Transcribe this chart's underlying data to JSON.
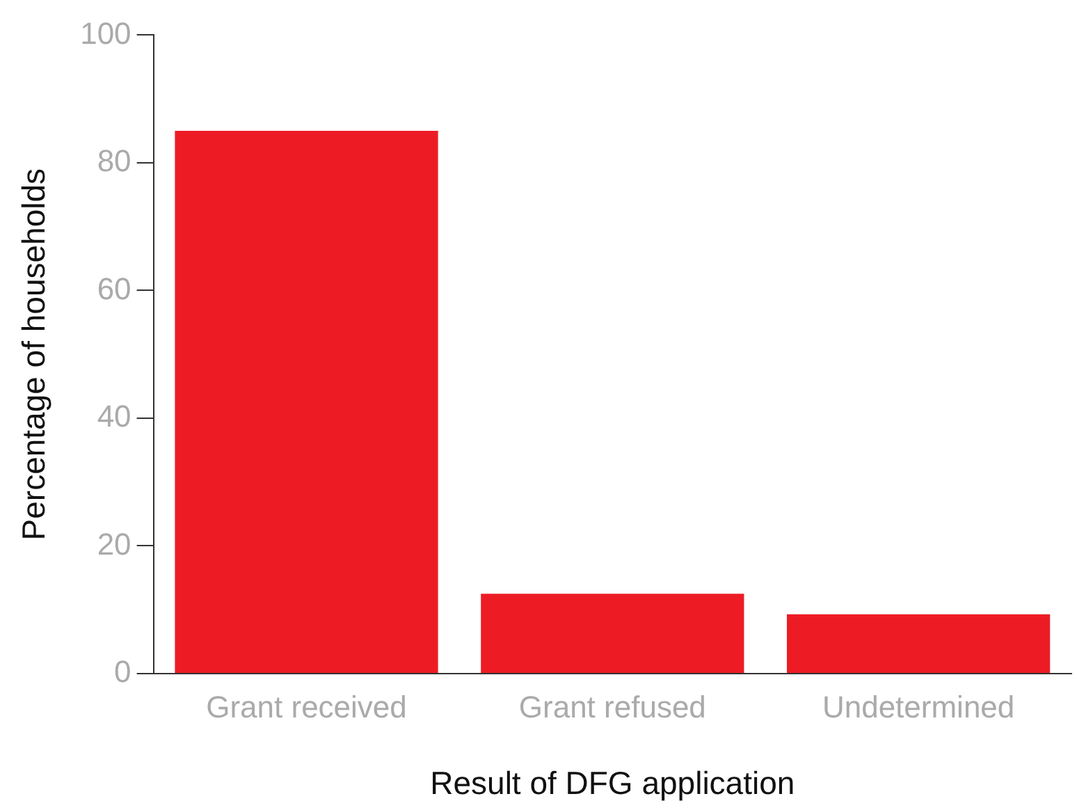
{
  "chart_data": {
    "type": "bar",
    "xlabel": "Result of DFG application",
    "ylabel": "Percentage of households",
    "categories": [
      "Grant received",
      "Grant refused",
      "Undetermined"
    ],
    "values": [
      85,
      12.5,
      9.3
    ],
    "color": "#ed1c24",
    "ylim": [
      0,
      100
    ],
    "yticks": [
      0,
      20,
      40,
      60,
      80,
      100
    ],
    "grid": false,
    "legend": false
  }
}
